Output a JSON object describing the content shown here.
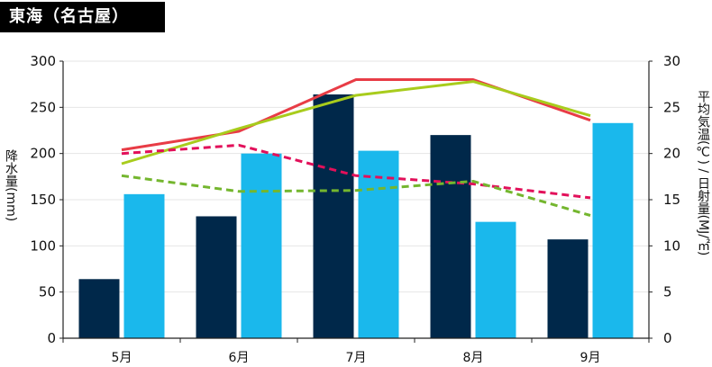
{
  "header": {
    "title": "東海（名古屋）"
  },
  "chart_data": {
    "type": "bar",
    "title": "東海（名古屋）",
    "categories": [
      "5月",
      "6月",
      "7月",
      "8月",
      "9月"
    ],
    "y_left": {
      "label": "降水量(mm)",
      "range": [
        0,
        300
      ],
      "ticks": [
        0,
        50,
        100,
        150,
        200,
        250,
        300
      ]
    },
    "y_right": {
      "label": "平均気温(℃) / 日射量(MJ/㎡)",
      "range": [
        0,
        30
      ],
      "ticks": [
        0,
        5,
        10,
        15,
        20,
        25,
        30
      ]
    },
    "grid": true,
    "bars": [
      {
        "color": "#00284a",
        "values": [
          64,
          132,
          264,
          220,
          107
        ]
      },
      {
        "color": "#1ab8ec",
        "values": [
          156,
          200,
          203,
          126,
          233
        ]
      }
    ],
    "lines": [
      {
        "axis": "right",
        "color": "#e83c46",
        "dashed": false,
        "values": [
          20.4,
          22.4,
          28.0,
          28.0,
          23.6
        ]
      },
      {
        "axis": "right",
        "color": "#a8cc1c",
        "dashed": false,
        "values": [
          18.9,
          22.7,
          26.3,
          27.8,
          24.1
        ]
      },
      {
        "axis": "right",
        "color": "#e2105a",
        "dashed": true,
        "values": [
          20.0,
          20.9,
          17.6,
          16.7,
          15.2
        ]
      },
      {
        "axis": "right",
        "color": "#74b62e",
        "dashed": true,
        "values": [
          17.6,
          15.9,
          16.0,
          17.0,
          13.3
        ]
      }
    ]
  }
}
